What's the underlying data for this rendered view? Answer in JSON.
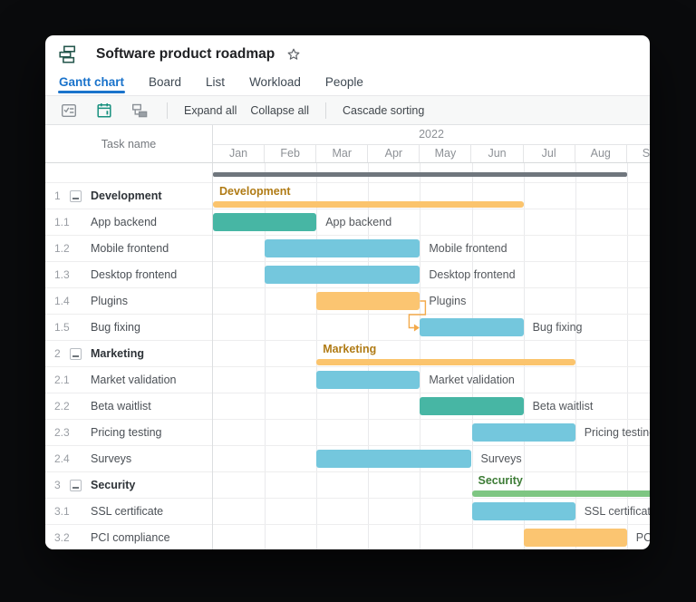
{
  "window": {
    "title": "Software product roadmap",
    "logo_icon": "gantt-hierarchy-logo",
    "star_icon": "star-outline"
  },
  "tabs": [
    {
      "label": "Gantt chart",
      "active": true
    },
    {
      "label": "Board",
      "active": false
    },
    {
      "label": "List",
      "active": false
    },
    {
      "label": "Workload",
      "active": false
    },
    {
      "label": "People",
      "active": false
    }
  ],
  "toolbar": {
    "icon_buttons": [
      "task-checklist",
      "calendar-alert",
      "add-subtask"
    ],
    "expand_all": "Expand all",
    "collapse_all": "Collapse all",
    "cascade_sorting": "Cascade sorting"
  },
  "table": {
    "task_name_header": "Task name"
  },
  "colors": {
    "accent_tab_blue": "#1a73cb",
    "teal_bar": "#47b6a4",
    "blue_bar": "#74c7dd",
    "orange_bar": "#fbc571",
    "summary_orange": "#fbc46d",
    "summary_green": "#7ec682",
    "project_gray": "#6f767d",
    "summary_label_orange": "#b07b15",
    "summary_label_green": "#3d7c36"
  },
  "gantt": {
    "year": "2022",
    "months": [
      "Jan",
      "Feb",
      "Mar",
      "Apr",
      "May",
      "Jun",
      "Jul",
      "Aug",
      "Sep"
    ],
    "project_bar": {
      "start": 0,
      "end": 8,
      "color": "#6f767d"
    },
    "tasks": [
      {
        "wbs": "1",
        "name": "Development",
        "type": "summary",
        "start": 0,
        "end": 6,
        "color": "#fbc46d",
        "label_color": "#b07b15"
      },
      {
        "wbs": "1.1",
        "name": "App backend",
        "type": "task",
        "start": 0,
        "end": 2,
        "color": "#47b6a4"
      },
      {
        "wbs": "1.2",
        "name": "Mobile frontend",
        "type": "task",
        "start": 1,
        "end": 4,
        "color": "#74c7dd"
      },
      {
        "wbs": "1.3",
        "name": "Desktop frontend",
        "type": "task",
        "start": 1,
        "end": 4,
        "color": "#74c7dd"
      },
      {
        "wbs": "1.4",
        "name": "Plugins",
        "type": "task",
        "start": 2,
        "end": 4,
        "color": "#fbc571"
      },
      {
        "wbs": "1.5",
        "name": "Bug fixing",
        "type": "task",
        "start": 4,
        "end": 6,
        "color": "#74c7dd"
      },
      {
        "wbs": "2",
        "name": "Marketing",
        "type": "summary",
        "start": 2,
        "end": 7,
        "color": "#fbc46d",
        "label_color": "#b07b15"
      },
      {
        "wbs": "2.1",
        "name": "Market validation",
        "type": "task",
        "start": 2,
        "end": 4,
        "color": "#74c7dd"
      },
      {
        "wbs": "2.2",
        "name": "Beta waitlist",
        "type": "task",
        "start": 4,
        "end": 6,
        "color": "#47b6a4"
      },
      {
        "wbs": "2.3",
        "name": "Pricing testing",
        "type": "task",
        "start": 5,
        "end": 7,
        "color": "#74c7dd"
      },
      {
        "wbs": "2.4",
        "name": "Surveys",
        "type": "task",
        "start": 2,
        "end": 5,
        "color": "#74c7dd"
      },
      {
        "wbs": "3",
        "name": "Security",
        "type": "summary",
        "start": 5,
        "end": 9.6,
        "color": "#7ec682",
        "label_color": "#3d7c36"
      },
      {
        "wbs": "3.1",
        "name": "SSL certificate",
        "type": "task",
        "start": 5,
        "end": 7,
        "color": "#74c7dd"
      },
      {
        "wbs": "3.2",
        "name": "PCI compliance",
        "type": "task",
        "start": 6,
        "end": 8,
        "color": "#fbc571"
      }
    ],
    "dependencies": [
      {
        "from": "1.4",
        "to": "1.5",
        "color": "#f3aa4b"
      }
    ]
  }
}
